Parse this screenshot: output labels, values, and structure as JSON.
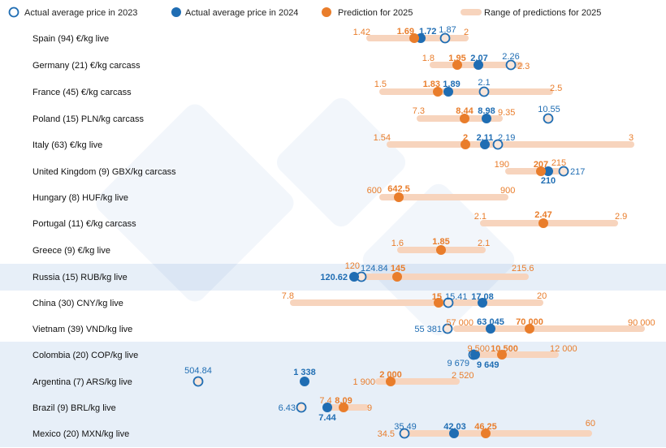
{
  "chart_data": {
    "type": "scatter",
    "colors": {
      "actual_2023": "#1f6db3",
      "actual_2024": "#1f6db3",
      "prediction_2025": "#e97d2b",
      "range_2025": "#f7d4bd",
      "highlight_band": "#e7eff8"
    },
    "legend": {
      "placement": "top",
      "items": [
        {
          "name": "Actual average price in 2023",
          "marker": "open-circle"
        },
        {
          "name": "Actual average price in 2024",
          "marker": "filled-blue-circle"
        },
        {
          "name": "Prediction for 2025",
          "marker": "filled-orange-circle"
        },
        {
          "name": "Range of predictions for 2025",
          "marker": "bar"
        }
      ]
    },
    "rows": [
      {
        "label": "Spain (94) €/kg live",
        "min": "1.42",
        "max": "2",
        "pred": "1.69",
        "a2024": "1.72",
        "a2023": "1.87"
      },
      {
        "label": "Germany (21) €/kg carcass",
        "min": "1.8",
        "max": "2.3",
        "pred": "1.95",
        "a2024": "2.07",
        "a2023": "2.26"
      },
      {
        "label": "France (45) €/kg carcass",
        "min": "1.5",
        "max": "2.5",
        "pred": "1.83",
        "a2024": "1.89",
        "a2023": "2.1"
      },
      {
        "label": "Poland (15) PLN/kg carcass",
        "min": "7.3",
        "max": "9.35",
        "pred": "8.44",
        "a2024": "8.98",
        "a2023": "10.55"
      },
      {
        "label": "Italy (63) €/kg live",
        "min": "1.54",
        "max": "3",
        "pred": "2",
        "a2024": "2.11",
        "a2023": "2.19"
      },
      {
        "label": "United Kingdom (9) GBX/kg carcass",
        "min": "190",
        "max": "215",
        "pred": "207",
        "a2024": "210",
        "a2023": "217"
      },
      {
        "label": "Hungary (8) HUF/kg live",
        "min": "600",
        "max": "900",
        "pred": "642.5"
      },
      {
        "label": "Portugal (11) €/kg carcass",
        "min": "2.1",
        "max": "2.9",
        "pred": "2.47"
      },
      {
        "label": "Greece (9) €/kg live",
        "min": "1.6",
        "max": "2.1",
        "pred": "1.85"
      },
      {
        "label": "Russia (15) RUB/kg live",
        "min": "120",
        "max": "215.6",
        "pred": "145",
        "a2024": "120.62",
        "a2023": "124.84",
        "highlight": true
      },
      {
        "label": "China (30) CNY/kg live",
        "min": "7.8",
        "max": "20",
        "pred": "15",
        "a2024": "17.08",
        "a2023": "15.41"
      },
      {
        "label": "Vietnam (39) VND/kg live",
        "min": "57 000",
        "max": "90 000",
        "pred": "70 000",
        "a2024": "63 045",
        "a2023": "55 381"
      },
      {
        "label": "Colombia (20) COP/kg live",
        "min": "9 500",
        "max": "12 000",
        "pred": "10 500",
        "a2024": "9 649",
        "a2023": "9 679",
        "highlight": true
      },
      {
        "label": "Argentina (7) ARS/kg live",
        "min": "1 900",
        "max": "2 520",
        "pred": "2 000",
        "a2024": "1 338",
        "a2023": "504.84",
        "highlight": true
      },
      {
        "label": "Brazil (9) BRL/kg live",
        "min": "7.4",
        "max": "9",
        "pred": "8.09",
        "a2024": "7.44",
        "a2023": "6.43",
        "highlight": true
      },
      {
        "label": "Mexico (20) MXN/kg live",
        "min": "34.5",
        "max": "60",
        "pred": "46.25",
        "a2024": "42.03",
        "a2023": "35.49",
        "highlight": true
      }
    ]
  }
}
